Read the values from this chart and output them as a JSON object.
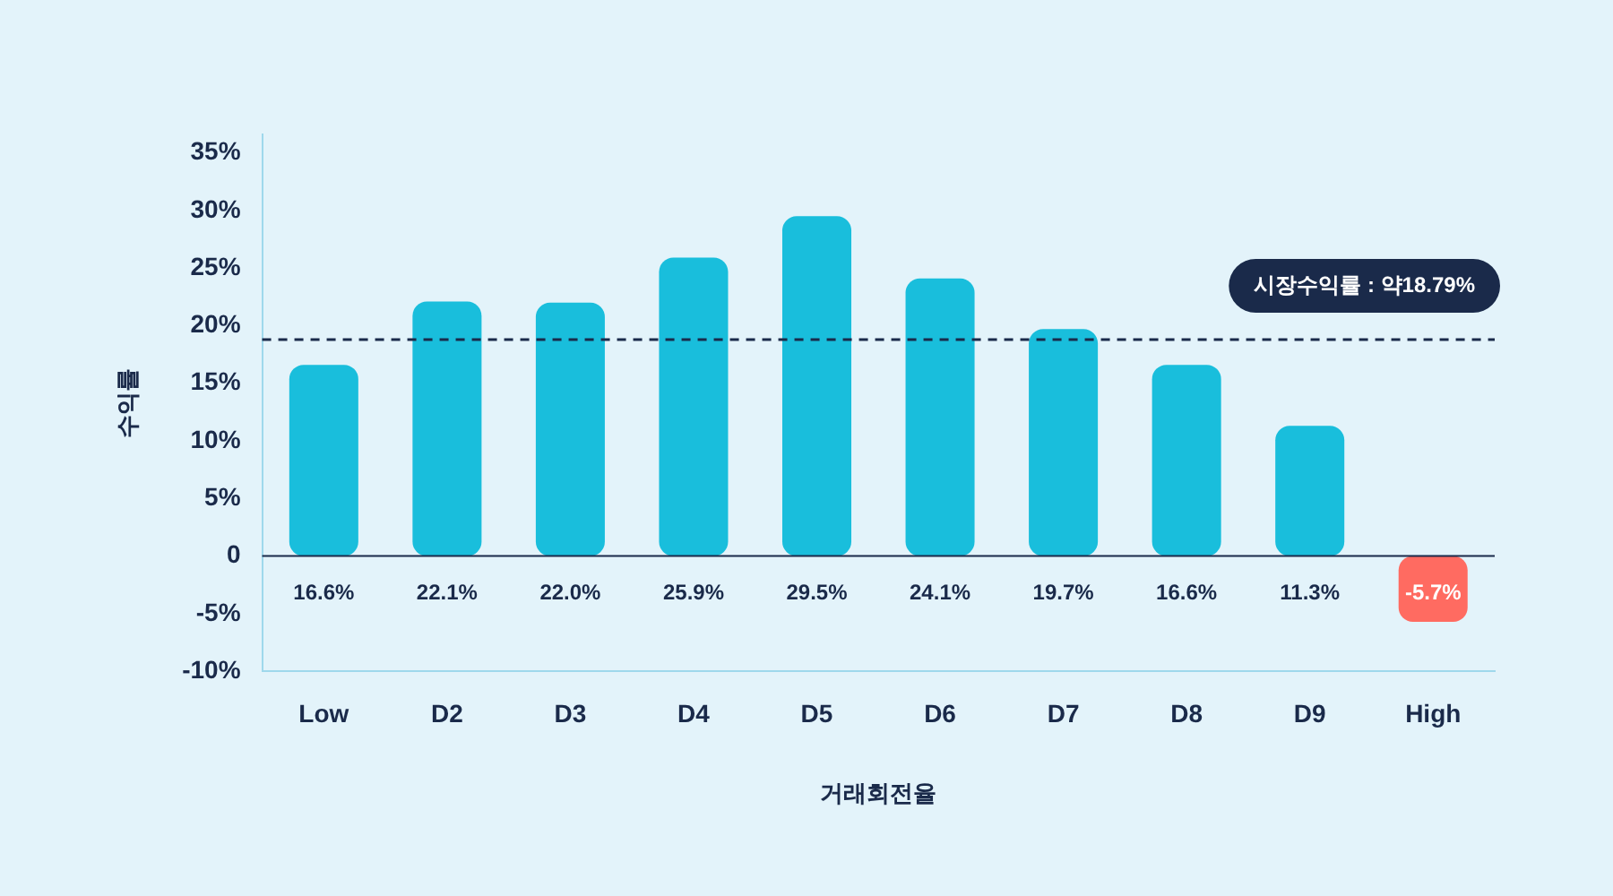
{
  "chart_data": {
    "type": "bar",
    "xlabel": "거래회전율",
    "ylabel": "수익률",
    "categories": [
      "Low",
      "D2",
      "D3",
      "D4",
      "D5",
      "D6",
      "D7",
      "D8",
      "D9",
      "High"
    ],
    "values": [
      16.6,
      22.1,
      22.0,
      25.9,
      29.5,
      24.1,
      19.7,
      16.6,
      11.3,
      -5.7
    ],
    "colors": [
      "#19bedc",
      "#19bedc",
      "#19bedc",
      "#19bedc",
      "#19bedc",
      "#19bedc",
      "#19bedc",
      "#19bedc",
      "#19bedc",
      "#ff6b61"
    ],
    "value_labels": [
      "16.6%",
      "22.1%",
      "22.0%",
      "25.9%",
      "29.5%",
      "24.1%",
      "19.7%",
      "16.6%",
      "11.3%",
      "-5.7%"
    ],
    "ylim": [
      -10,
      36.6
    ],
    "yticks": [
      {
        "value": -10,
        "label": "-10%"
      },
      {
        "value": -5,
        "label": "-5%"
      },
      {
        "value": 0,
        "label": "0"
      },
      {
        "value": 5,
        "label": "5%"
      },
      {
        "value": 10,
        "label": "10%"
      },
      {
        "value": 15,
        "label": "15%"
      },
      {
        "value": 20,
        "label": "20%"
      },
      {
        "value": 25,
        "label": "25%"
      },
      {
        "value": 30,
        "label": "30%"
      },
      {
        "value": 35,
        "label": "35%"
      }
    ],
    "ref_lines": [
      {
        "axis": "y",
        "value": 18.79,
        "label": "시장수익률 : 약18.79%",
        "color": "#1a2a4a",
        "line_style": "dashed"
      }
    ],
    "grid": false,
    "legend": false
  }
}
